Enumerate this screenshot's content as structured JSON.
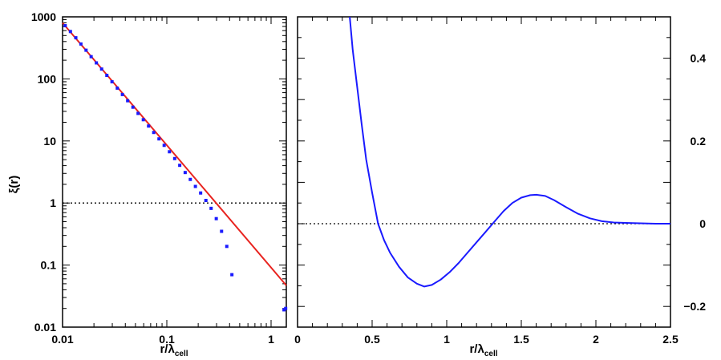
{
  "chart_data": [
    {
      "type": "scatter",
      "ylabel": "ξ(r)",
      "xlabel": "r/λcell",
      "xscale": "log",
      "yscale": "log",
      "xlim": [
        0.01,
        1.4
      ],
      "ylim": [
        0.01,
        1000
      ],
      "x_ticks": [
        {
          "v": 0.01,
          "label": "0.01"
        },
        {
          "v": 0.1,
          "label": "0.1"
        },
        {
          "v": 1,
          "label": "1"
        }
      ],
      "y_ticks": [
        {
          "v": 0.01,
          "label": "0.01"
        },
        {
          "v": 0.1,
          "label": "0.1"
        },
        {
          "v": 1,
          "label": "1"
        },
        {
          "v": 10,
          "label": "10"
        },
        {
          "v": 100,
          "label": "100"
        },
        {
          "v": 1000,
          "label": "1000"
        }
      ],
      "reference_line": {
        "y": 1,
        "style": "dotted"
      },
      "power_law_fit": {
        "color": "#e8231f",
        "x": [
          0.01,
          1.4
        ],
        "y": [
          800,
          0.047
        ]
      },
      "series": [
        {
          "color": "#1a1aff",
          "points": [
            [
              0.0106,
              720
            ],
            [
              0.0119,
              580
            ],
            [
              0.0134,
              460
            ],
            [
              0.015,
              365
            ],
            [
              0.0168,
              290
            ],
            [
              0.0188,
              228
            ],
            [
              0.0211,
              181
            ],
            [
              0.0237,
              144
            ],
            [
              0.0266,
              114
            ],
            [
              0.0298,
              90
            ],
            [
              0.0335,
              71
            ],
            [
              0.0375,
              56
            ],
            [
              0.0421,
              44.5
            ],
            [
              0.0473,
              35
            ],
            [
              0.053,
              27.8
            ],
            [
              0.0595,
              22
            ],
            [
              0.0668,
              17.4
            ],
            [
              0.0749,
              13.7
            ],
            [
              0.0841,
              10.8
            ],
            [
              0.0943,
              8.5
            ],
            [
              0.106,
              6.7
            ],
            [
              0.119,
              5.2
            ],
            [
              0.133,
              4.05
            ],
            [
              0.15,
              3.1
            ],
            [
              0.168,
              2.4
            ],
            [
              0.188,
              1.85
            ],
            [
              0.211,
              1.45
            ],
            [
              0.237,
              1.1
            ],
            [
              0.266,
              0.82
            ],
            [
              0.298,
              0.56
            ],
            [
              0.335,
              0.35
            ],
            [
              0.376,
              0.2
            ],
            [
              0.421,
              0.07
            ],
            [
              1.33,
              0.019
            ],
            [
              1.38,
              0.02
            ]
          ]
        }
      ]
    },
    {
      "type": "line",
      "xlabel": "r/λcell",
      "xlim": [
        0,
        2.5
      ],
      "ylim": [
        -0.25,
        0.5
      ],
      "x_ticks": [
        {
          "v": 0,
          "label": "0"
        },
        {
          "v": 0.5,
          "label": "0.5"
        },
        {
          "v": 1,
          "label": "1"
        },
        {
          "v": 1.5,
          "label": "1.5"
        },
        {
          "v": 2,
          "label": "2"
        },
        {
          "v": 2.5,
          "label": "2.5"
        }
      ],
      "y_ticks": [
        {
          "v": -0.2,
          "label": "−0.2"
        },
        {
          "v": 0,
          "label": "0"
        },
        {
          "v": 0.2,
          "label": "0.2"
        },
        {
          "v": 0.4,
          "label": "0.4"
        }
      ],
      "reference_line": {
        "y": 0,
        "style": "dotted"
      },
      "series": [
        {
          "color": "#1a1aff",
          "points": [
            [
              0.35,
              0.5
            ],
            [
              0.37,
              0.42
            ],
            [
              0.4,
              0.33
            ],
            [
              0.43,
              0.24
            ],
            [
              0.46,
              0.155
            ],
            [
              0.5,
              0.075
            ],
            [
              0.54,
              0.0
            ],
            [
              0.58,
              -0.04
            ],
            [
              0.62,
              -0.07
            ],
            [
              0.68,
              -0.104
            ],
            [
              0.74,
              -0.13
            ],
            [
              0.8,
              -0.145
            ],
            [
              0.85,
              -0.152
            ],
            [
              0.9,
              -0.148
            ],
            [
              0.96,
              -0.135
            ],
            [
              1.02,
              -0.117
            ],
            [
              1.08,
              -0.095
            ],
            [
              1.14,
              -0.07
            ],
            [
              1.2,
              -0.045
            ],
            [
              1.26,
              -0.02
            ],
            [
              1.32,
              0.005
            ],
            [
              1.38,
              0.03
            ],
            [
              1.44,
              0.05
            ],
            [
              1.5,
              0.063
            ],
            [
              1.56,
              0.069
            ],
            [
              1.6,
              0.07
            ],
            [
              1.66,
              0.067
            ],
            [
              1.72,
              0.057
            ],
            [
              1.8,
              0.04
            ],
            [
              1.88,
              0.024
            ],
            [
              1.96,
              0.013
            ],
            [
              2.04,
              0.006
            ],
            [
              2.12,
              0.003
            ],
            [
              2.2,
              0.002
            ],
            [
              2.3,
              0.001
            ],
            [
              2.4,
              0.0
            ],
            [
              2.5,
              0.0
            ]
          ]
        }
      ]
    }
  ]
}
